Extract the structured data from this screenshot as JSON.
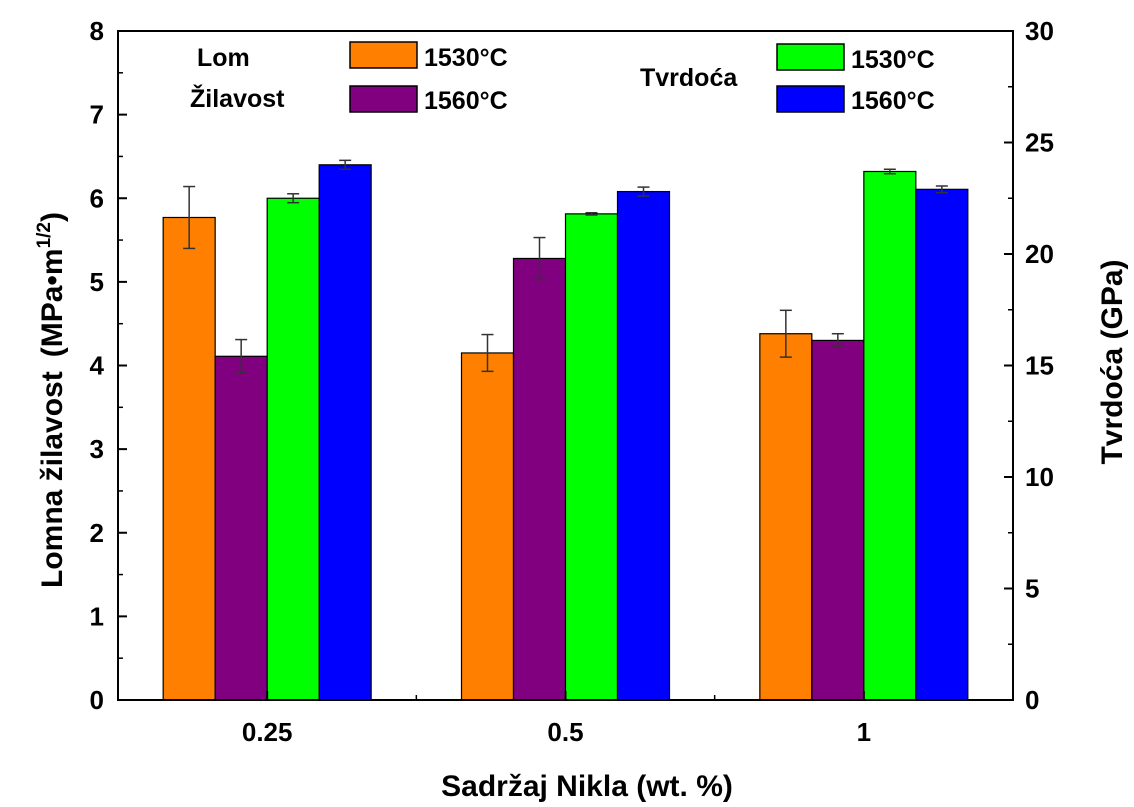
{
  "chart_data": {
    "type": "bar",
    "categories": [
      "0.25",
      "0.5",
      "1"
    ],
    "xlabel": "Sadržaj Nikla (wt. %)",
    "ylabel_left": "Lomna žilavost",
    "ylabel_left_unit": "(MPa•m",
    "ylabel_left_unit_exp": "1/2",
    "ylabel_left_unit_close": ")",
    "ylabel_right": "Tvrdoća (GPa)",
    "ylim_left": [
      0,
      8
    ],
    "ylim_right": [
      0,
      30
    ],
    "yticks_left": [
      "0",
      "1",
      "2",
      "3",
      "4",
      "5",
      "6",
      "7",
      "8"
    ],
    "yticks_right": [
      "0",
      "5",
      "10",
      "15",
      "20",
      "25",
      "30"
    ],
    "legend": {
      "group1_title_line1": "Lom",
      "group1_title_line2": "Žilavost",
      "group2_title": "Tvrdoća",
      "placement": "top"
    },
    "series": [
      {
        "name": "1530°C",
        "group": "Lom Žilavost",
        "axis": "left",
        "color": "#ff8000",
        "values": [
          5.77,
          4.15,
          4.38
        ],
        "errors": [
          0.37,
          0.22,
          0.28
        ]
      },
      {
        "name": "1560°C",
        "group": "Lom Žilavost",
        "axis": "left",
        "color": "#800080",
        "values": [
          4.11,
          5.28,
          4.3
        ],
        "errors": [
          0.2,
          0.25,
          0.08
        ]
      },
      {
        "name": "1530°C",
        "group": "Tvrdoća",
        "axis": "right",
        "color": "#00ff00",
        "values": [
          22.5,
          21.8,
          23.7
        ],
        "errors": [
          0.2,
          0.05,
          0.1
        ]
      },
      {
        "name": "1560°C",
        "group": "Tvrdoća",
        "axis": "right",
        "color": "#0000ff",
        "values": [
          24.0,
          22.8,
          22.9
        ],
        "errors": [
          0.2,
          0.2,
          0.15
        ]
      }
    ]
  }
}
